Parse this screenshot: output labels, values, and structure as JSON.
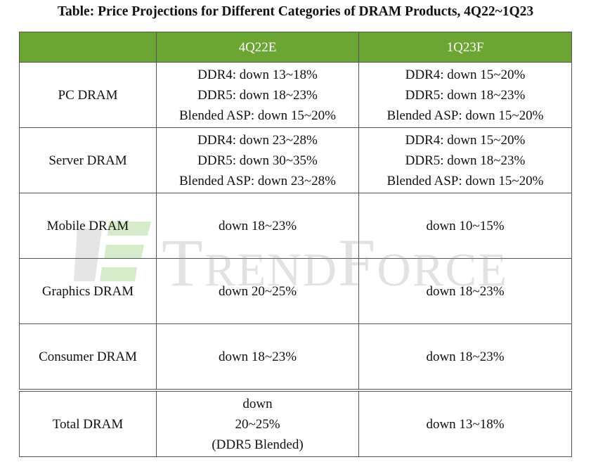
{
  "title": "Table: Price Projections for Different Categories of DRAM Products, 4Q22~1Q23",
  "watermark": "TrendForce",
  "table": {
    "header": [
      "4Q22E",
      "1Q23F"
    ],
    "rows": [
      {
        "label": "PC DRAM",
        "cells": [
          [
            "DDR4: down 13~18%",
            "DDR5: down 18~23%",
            "Blended ASP: down 15~20%"
          ],
          [
            "DDR4: down 15~20%",
            "DDR5: down 18~23%",
            "Blended ASP: down 15~20%"
          ]
        ]
      },
      {
        "label": "Server DRAM",
        "cells": [
          [
            "DDR4: down 23~28%",
            "DDR5: down 30~35%",
            "Blended ASP: down 23~28%"
          ],
          [
            "DDR4: down 15~20%",
            "DDR5: down 18~23%",
            "Blended ASP: down 15~20%"
          ]
        ]
      },
      {
        "label": "Mobile DRAM",
        "cells": [
          [
            "down 18~23%"
          ],
          [
            "down 10~15%"
          ]
        ]
      },
      {
        "label": "Graphics DRAM",
        "cells": [
          [
            "down 20~25%"
          ],
          [
            "down 18~23%"
          ]
        ]
      },
      {
        "label": "Consumer DRAM",
        "cells": [
          [
            "down 18~23%"
          ],
          [
            "down 18~23%"
          ]
        ]
      },
      {
        "label": "Total DRAM",
        "cells": [
          [
            "down",
            "20~25%",
            "(DDR5 Blended)"
          ],
          [
            "down 13~18%"
          ]
        ]
      }
    ]
  }
}
